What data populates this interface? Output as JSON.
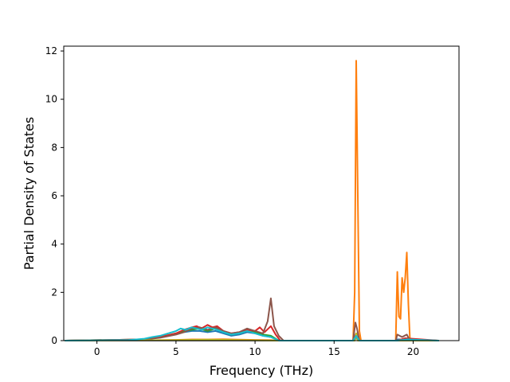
{
  "chart_data": {
    "type": "line",
    "title": "",
    "xlabel": "Frequency (THz)",
    "ylabel": "Partial Density of States",
    "xlim": [
      -2.1,
      22.9
    ],
    "ylim": [
      0,
      12.2
    ],
    "xticks": [
      0,
      5,
      10,
      15,
      20
    ],
    "yticks": [
      0,
      2,
      4,
      6,
      8,
      10,
      12
    ],
    "grid": false,
    "legend": "none",
    "series": [
      {
        "color": "#1f77b4",
        "x": [
          -2,
          2.5,
          3.5,
          4.5,
          5,
          5.5,
          6,
          6.5,
          7,
          7.5,
          8,
          8.5,
          9,
          9.5,
          10,
          10.5,
          11,
          11.5,
          16.2,
          16.4,
          16.6,
          18.9,
          19,
          19.3,
          19.6,
          19.8,
          21.6
        ],
        "y": [
          0,
          0.02,
          0.1,
          0.2,
          0.3,
          0.35,
          0.4,
          0.4,
          0.35,
          0.4,
          0.3,
          0.2,
          0.25,
          0.35,
          0.3,
          0.2,
          0.15,
          0,
          0,
          0.15,
          0,
          0,
          0.05,
          0.05,
          0.05,
          0,
          0
        ]
      },
      {
        "color": "#ff7f0e",
        "x": [
          -2,
          3,
          4,
          5,
          6,
          7,
          8,
          9,
          10,
          11,
          11.5,
          16.2,
          16.3,
          16.4,
          16.5,
          16.6,
          16.7,
          18.9,
          19.0,
          19.1,
          19.2,
          19.3,
          19.4,
          19.5,
          19.6,
          19.7,
          19.8,
          21.6
        ],
        "y": [
          0,
          0.01,
          0.02,
          0.03,
          0.05,
          0.05,
          0.06,
          0.04,
          0.03,
          0.02,
          0,
          0,
          2.0,
          11.6,
          6.0,
          0.4,
          0,
          0,
          2.85,
          1.0,
          0.9,
          2.6,
          2.0,
          2.6,
          3.65,
          1.5,
          0,
          0
        ]
      },
      {
        "color": "#2ca02c",
        "x": [
          -2,
          3,
          4,
          5,
          5.5,
          6,
          6.5,
          7,
          7.5,
          8,
          8.5,
          9,
          9.5,
          10,
          10.5,
          11,
          11.5,
          16.2,
          16.4,
          16.6,
          19,
          19.6,
          21.6
        ],
        "y": [
          0,
          0.05,
          0.15,
          0.3,
          0.4,
          0.45,
          0.5,
          0.4,
          0.5,
          0.35,
          0.25,
          0.3,
          0.4,
          0.35,
          0.25,
          0.2,
          0,
          0,
          0.2,
          0,
          0,
          0.05,
          0
        ]
      },
      {
        "color": "#d62728",
        "x": [
          -2,
          3,
          4,
          5,
          5.5,
          6,
          6.3,
          6.6,
          7,
          7.3,
          7.6,
          8,
          8.5,
          9,
          9.5,
          10,
          10.3,
          10.6,
          11,
          11.3,
          11.6,
          16.2,
          16.4,
          16.6,
          19,
          19.5,
          21.6
        ],
        "y": [
          0,
          0.05,
          0.15,
          0.3,
          0.45,
          0.55,
          0.6,
          0.5,
          0.65,
          0.55,
          0.6,
          0.4,
          0.3,
          0.35,
          0.45,
          0.4,
          0.55,
          0.35,
          0.6,
          0.25,
          0,
          0,
          0.3,
          0,
          0,
          0.1,
          0
        ]
      },
      {
        "color": "#8c564b",
        "x": [
          -2,
          3,
          4,
          5,
          5.5,
          6,
          6.5,
          7,
          7.5,
          8,
          8.5,
          9,
          9.5,
          10,
          10.5,
          10.8,
          11,
          11.2,
          11.5,
          11.8,
          16.2,
          16.35,
          16.45,
          16.6,
          18.9,
          19.0,
          19.3,
          19.6,
          19.8,
          21.6
        ],
        "y": [
          0,
          0.05,
          0.12,
          0.25,
          0.35,
          0.5,
          0.55,
          0.45,
          0.55,
          0.4,
          0.3,
          0.35,
          0.5,
          0.4,
          0.3,
          0.8,
          1.75,
          0.6,
          0.2,
          0,
          0,
          0.75,
          0.5,
          0,
          0,
          0.25,
          0.15,
          0.25,
          0,
          0
        ]
      },
      {
        "color": "#7f7f7f",
        "x": [
          -2,
          16.2,
          16.4,
          16.6,
          21.6
        ],
        "y": [
          0,
          0,
          0.1,
          0,
          0
        ]
      },
      {
        "color": "#bcbd22",
        "x": [
          -2,
          5,
          7,
          9,
          11.5,
          16.3,
          16.4,
          16.5,
          21.6
        ],
        "y": [
          0,
          0.02,
          0.04,
          0.02,
          0,
          0,
          0.3,
          0,
          0
        ]
      },
      {
        "color": "#17becf",
        "x": [
          -2,
          2,
          3,
          3.5,
          4,
          4.5,
          5,
          5.3,
          5.6,
          6,
          6.3,
          6.6,
          7,
          7.3,
          7.6,
          8,
          8.5,
          9,
          9.5,
          10,
          10.5,
          11,
          11.5,
          16.2,
          16.4,
          16.6,
          19,
          19.6,
          21.6
        ],
        "y": [
          0,
          0.02,
          0.08,
          0.15,
          0.2,
          0.3,
          0.4,
          0.5,
          0.45,
          0.55,
          0.5,
          0.45,
          0.55,
          0.5,
          0.45,
          0.35,
          0.25,
          0.3,
          0.4,
          0.3,
          0.2,
          0.15,
          0,
          0,
          0.2,
          0,
          0,
          0.05,
          0
        ]
      }
    ]
  }
}
